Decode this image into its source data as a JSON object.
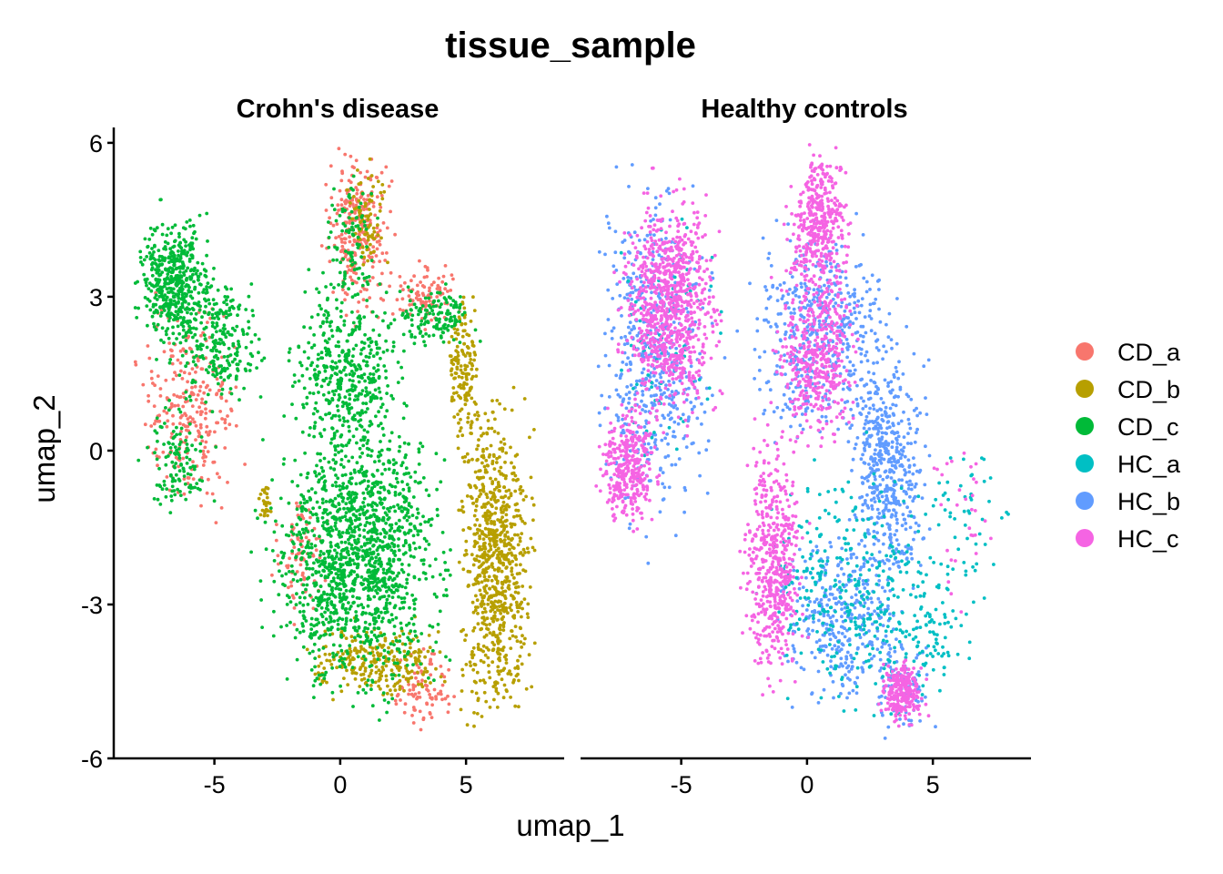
{
  "chart_data": {
    "type": "scatter",
    "title": "tissue_sample",
    "xlabel": "umap_1",
    "ylabel": "umap_2",
    "xlim": [
      -9,
      8.9
    ],
    "ylim": [
      -6,
      6.3
    ],
    "x_ticks": [
      "-5",
      "0",
      "5"
    ],
    "y_ticks": [
      "-6",
      "-3",
      "0",
      "3",
      "6"
    ],
    "grid": false,
    "legend_position": "right",
    "panels": [
      {
        "name": "Crohn's disease",
        "series": [
          "CD_a",
          "CD_b",
          "CD_c"
        ],
        "regions": [
          {
            "series": "CD_a",
            "cx": 0.7,
            "cy": 4.3,
            "rx": 1.0,
            "ry": 1.2,
            "n": 280
          },
          {
            "series": "CD_a",
            "cx": -6.0,
            "cy": 0.8,
            "rx": 1.6,
            "ry": 1.6,
            "n": 260
          },
          {
            "series": "CD_a",
            "cx": 3.4,
            "cy": 3.0,
            "rx": 1.0,
            "ry": 0.5,
            "n": 90
          },
          {
            "series": "CD_a",
            "cx": 3.3,
            "cy": -4.6,
            "rx": 0.9,
            "ry": 0.6,
            "n": 90
          },
          {
            "series": "CD_a",
            "cx": -1.6,
            "cy": -2.0,
            "rx": 0.8,
            "ry": 1.0,
            "n": 80
          },
          {
            "series": "CD_b",
            "cx": 6.2,
            "cy": -2.2,
            "rx": 1.1,
            "ry": 2.4,
            "n": 800
          },
          {
            "series": "CD_b",
            "cx": 1.5,
            "cy": -4.1,
            "rx": 2.3,
            "ry": 0.6,
            "n": 260
          },
          {
            "series": "CD_b",
            "cx": 4.9,
            "cy": 1.6,
            "rx": 0.5,
            "ry": 1.4,
            "n": 160
          },
          {
            "series": "CD_b",
            "cx": 1.0,
            "cy": 4.5,
            "rx": 0.6,
            "ry": 0.8,
            "n": 80
          },
          {
            "series": "CD_b",
            "cx": -3.0,
            "cy": -1.0,
            "rx": 0.2,
            "ry": 0.3,
            "n": 30
          },
          {
            "series": "CD_c",
            "cx": -6.6,
            "cy": 3.3,
            "rx": 1.1,
            "ry": 1.0,
            "n": 460
          },
          {
            "series": "CD_c",
            "cx": -4.8,
            "cy": 2.2,
            "rx": 1.4,
            "ry": 1.0,
            "n": 260
          },
          {
            "series": "CD_c",
            "cx": 0.7,
            "cy": -2.0,
            "rx": 2.7,
            "ry": 2.1,
            "n": 1450
          },
          {
            "series": "CD_c",
            "cx": 0.3,
            "cy": 1.6,
            "rx": 1.8,
            "ry": 1.3,
            "n": 420
          },
          {
            "series": "CD_c",
            "cx": -6.5,
            "cy": -0.3,
            "rx": 1.0,
            "ry": 0.9,
            "n": 120
          },
          {
            "series": "CD_c",
            "cx": 3.8,
            "cy": 2.6,
            "rx": 1.2,
            "ry": 0.5,
            "n": 140
          },
          {
            "series": "CD_c",
            "cx": 0.4,
            "cy": 4.0,
            "rx": 0.8,
            "ry": 1.1,
            "n": 100
          }
        ]
      },
      {
        "name": "Healthy controls",
        "series": [
          "HC_a",
          "HC_b",
          "HC_c"
        ],
        "regions": [
          {
            "series": "HC_b",
            "cx": -6.0,
            "cy": 1.8,
            "rx": 1.8,
            "ry": 2.6,
            "n": 520
          },
          {
            "series": "HC_b",
            "cx": 0.5,
            "cy": 2.3,
            "rx": 2.2,
            "ry": 1.6,
            "n": 500
          },
          {
            "series": "HC_b",
            "cx": 3.2,
            "cy": -0.3,
            "rx": 1.2,
            "ry": 1.9,
            "n": 500
          },
          {
            "series": "HC_b",
            "cx": 1.5,
            "cy": -3.3,
            "rx": 2.0,
            "ry": 1.3,
            "n": 340
          },
          {
            "series": "HC_b",
            "cx": 3.8,
            "cy": -4.6,
            "rx": 0.9,
            "ry": 0.8,
            "n": 90
          },
          {
            "series": "HC_a",
            "cx": 1.6,
            "cy": -2.6,
            "rx": 2.5,
            "ry": 2.0,
            "n": 300
          },
          {
            "series": "HC_a",
            "cx": 4.6,
            "cy": -3.3,
            "rx": 1.5,
            "ry": 1.2,
            "n": 110
          },
          {
            "series": "HC_a",
            "cx": 6.5,
            "cy": -1.5,
            "rx": 1.3,
            "ry": 1.3,
            "n": 50
          },
          {
            "series": "HC_a",
            "cx": -5.7,
            "cy": 2.2,
            "rx": 1.6,
            "ry": 2.0,
            "n": 80
          },
          {
            "series": "HC_c",
            "cx": -5.4,
            "cy": 2.8,
            "rx": 1.5,
            "ry": 1.7,
            "n": 900
          },
          {
            "series": "HC_c",
            "cx": -7.1,
            "cy": -0.3,
            "rx": 0.9,
            "ry": 0.9,
            "n": 340
          },
          {
            "series": "HC_c",
            "cx": 0.5,
            "cy": 4.4,
            "rx": 0.9,
            "ry": 1.1,
            "n": 420
          },
          {
            "series": "HC_c",
            "cx": 0.4,
            "cy": 1.9,
            "rx": 1.3,
            "ry": 1.4,
            "n": 420
          },
          {
            "series": "HC_c",
            "cx": -1.3,
            "cy": -2.2,
            "rx": 0.9,
            "ry": 1.9,
            "n": 520
          },
          {
            "series": "HC_c",
            "cx": 3.8,
            "cy": -4.7,
            "rx": 0.7,
            "ry": 0.5,
            "n": 240
          },
          {
            "series": "HC_c",
            "cx": 6.3,
            "cy": -1.3,
            "rx": 1.0,
            "ry": 1.2,
            "n": 30
          }
        ]
      }
    ],
    "legend": [
      {
        "label": "CD_a",
        "color": "#F8766D"
      },
      {
        "label": "CD_b",
        "color": "#B79F00"
      },
      {
        "label": "CD_c",
        "color": "#00BA38"
      },
      {
        "label": "HC_a",
        "color": "#00BFC4"
      },
      {
        "label": "HC_b",
        "color": "#619CFF"
      },
      {
        "label": "HC_c",
        "color": "#F564E3"
      }
    ]
  }
}
